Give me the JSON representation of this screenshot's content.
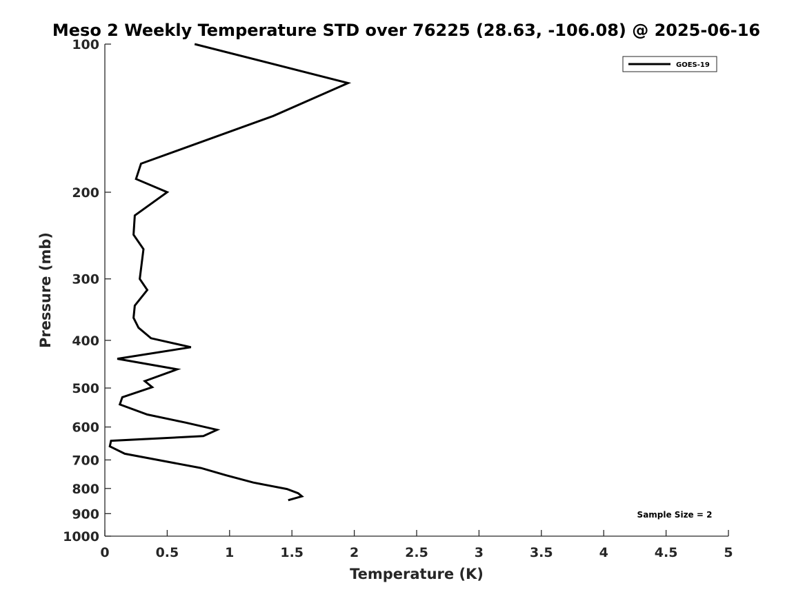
{
  "chart_data": {
    "type": "line",
    "title": "Meso 2 Weekly Temperature STD over 76225 (28.63, -106.08) @ 2025-06-16",
    "xlabel": "Temperature (K)",
    "ylabel": "Pressure (mb)",
    "xlim": [
      0,
      5
    ],
    "ylim": [
      100,
      1000
    ],
    "y_scale": "log",
    "y_reversed": true,
    "x_ticks": [
      "0",
      "0.5",
      "1",
      "1.5",
      "2",
      "2.5",
      "3",
      "3.5",
      "4",
      "4.5",
      "5"
    ],
    "y_ticks": [
      "100",
      "200",
      "300",
      "400",
      "500",
      "600",
      "700",
      "800",
      "900",
      "1000"
    ],
    "grid": false,
    "legend": {
      "placement": "top-right",
      "entries": [
        "GOES-19"
      ]
    },
    "annotation": "Sample Size = 2",
    "series": [
      {
        "name": "GOES-19",
        "color": "#000000",
        "points": [
          [
            0.72,
            100
          ],
          [
            1.95,
            120
          ],
          [
            1.35,
            140
          ],
          [
            0.29,
            175
          ],
          [
            0.25,
            188
          ],
          [
            0.5,
            200
          ],
          [
            0.24,
            223
          ],
          [
            0.23,
            244
          ],
          [
            0.31,
            261
          ],
          [
            0.28,
            300
          ],
          [
            0.34,
            316
          ],
          [
            0.24,
            340
          ],
          [
            0.23,
            360
          ],
          [
            0.27,
            377
          ],
          [
            0.37,
            396
          ],
          [
            0.69,
            413
          ],
          [
            0.1,
            436
          ],
          [
            0.58,
            458
          ],
          [
            0.32,
            484
          ],
          [
            0.38,
            498
          ],
          [
            0.14,
            522
          ],
          [
            0.12,
            540
          ],
          [
            0.34,
            566
          ],
          [
            0.65,
            588
          ],
          [
            0.9,
            608
          ],
          [
            0.79,
            626
          ],
          [
            0.05,
            640
          ],
          [
            0.04,
            657
          ],
          [
            0.16,
            680
          ],
          [
            0.77,
            727
          ],
          [
            0.97,
            752
          ],
          [
            1.19,
            778
          ],
          [
            1.46,
            802
          ],
          [
            1.55,
            818
          ],
          [
            1.58,
            830
          ],
          [
            1.47,
            845
          ]
        ]
      }
    ]
  }
}
